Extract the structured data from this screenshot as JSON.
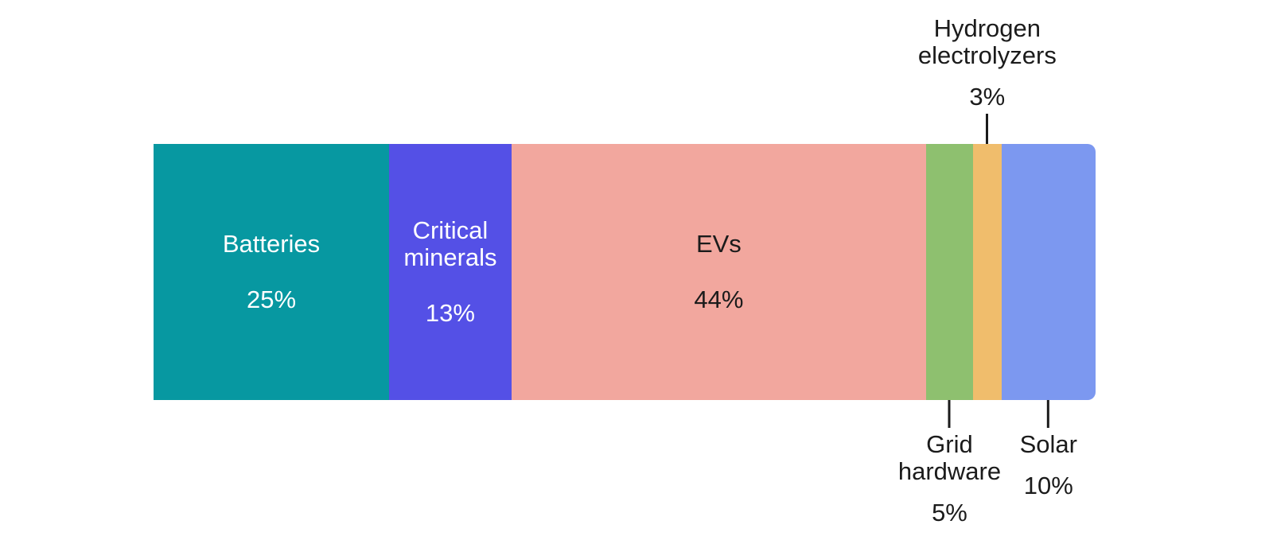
{
  "chart_data": {
    "type": "bar",
    "variant": "horizontal-stacked-single-bar",
    "unit": "%",
    "total": 100,
    "grid": false,
    "legend": false,
    "colors": {
      "callout_line": "#1b1b1b",
      "inside_light_text": "#ffffff",
      "dark_text": "#1b1b1b",
      "background": "#ffffff"
    },
    "segments": [
      {
        "label": "Batteries",
        "value": 25,
        "value_label": "25%",
        "color": "#0798A1",
        "text_color": "#ffffff",
        "label_position": "inside"
      },
      {
        "label": "Critical minerals",
        "value": 13,
        "value_label": "13%",
        "color": "#5450E6",
        "text_color": "#ffffff",
        "label_position": "inside"
      },
      {
        "label": "EVs",
        "value": 44,
        "value_label": "44%",
        "color": "#F2A79E",
        "text_color": "#1b1b1b",
        "label_position": "inside"
      },
      {
        "label": "Grid hardware",
        "value": 5,
        "value_label": "5%",
        "color": "#8EC06F",
        "text_color": "#1b1b1b",
        "label_position": "below"
      },
      {
        "label": "Hydrogen electrolyzers",
        "value": 3,
        "value_label": "3%",
        "color": "#F0BD6C",
        "text_color": "#1b1b1b",
        "label_position": "above"
      },
      {
        "label": "Solar",
        "value": 10,
        "value_label": "10%",
        "color": "#7C98F0",
        "text_color": "#1b1b1b",
        "label_position": "below"
      }
    ]
  }
}
